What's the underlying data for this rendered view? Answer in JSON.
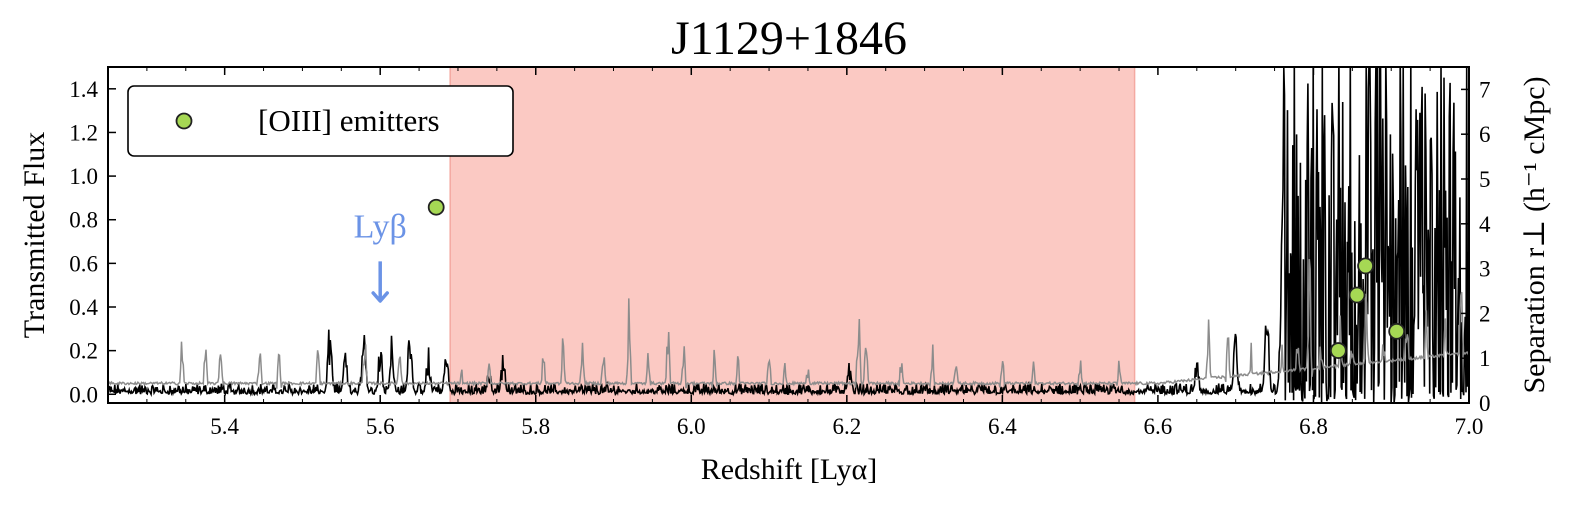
{
  "chart_data": {
    "type": "line",
    "title": "J1129+1846",
    "xlabel": "Redshift [Lyα]",
    "ylabel": "Transmitted Flux",
    "y2label": "Separation r⊥ (h⁻¹ cMpc)",
    "xlim": [
      5.25,
      7.0
    ],
    "ylim": [
      -0.04,
      1.5
    ],
    "y2lim": [
      0,
      7.5
    ],
    "xticks": [
      "5.4",
      "5.6",
      "5.8",
      "6.0",
      "6.2",
      "6.4",
      "6.6",
      "6.8",
      "7.0"
    ],
    "xtick_values": [
      5.4,
      5.6,
      5.8,
      6.0,
      6.2,
      6.4,
      6.6,
      6.8,
      7.0
    ],
    "yticks": [
      "0.0",
      "0.2",
      "0.4",
      "0.6",
      "0.8",
      "1.0",
      "1.2",
      "1.4"
    ],
    "ytick_values": [
      0.0,
      0.2,
      0.4,
      0.6,
      0.8,
      1.0,
      1.2,
      1.4
    ],
    "y2ticks": [
      "0",
      "1",
      "2",
      "3",
      "4",
      "5",
      "6",
      "7"
    ],
    "y2tick_values": [
      0,
      1,
      2,
      3,
      4,
      5,
      6,
      7
    ],
    "shaded_region": {
      "x": [
        5.69,
        6.57
      ],
      "color": "#fbc9c3"
    },
    "annotation": {
      "text": "Lyβ",
      "x": 5.6,
      "y": 0.6,
      "arrow_to_y": 0.4,
      "color": "#6b93e6"
    },
    "legend": {
      "label": "[OIII] emitters",
      "position": "upper-left"
    },
    "series": [
      {
        "name": "[OIII] emitters",
        "kind": "scatter",
        "axis": "right",
        "color": "#a6d854",
        "points": [
          {
            "x": 5.672,
            "y": 4.37
          },
          {
            "x": 6.832,
            "y": 1.17
          },
          {
            "x": 6.856,
            "y": 2.41
          },
          {
            "x": 6.867,
            "y": 3.06
          },
          {
            "x": 6.907,
            "y": 1.6
          }
        ]
      }
    ],
    "spectrum_black": {
      "color": "#000000",
      "baseline_low": 0.0,
      "baseline_high": 0.05,
      "peaks": [
        {
          "x": 5.535,
          "y": 0.33
        },
        {
          "x": 5.555,
          "y": 0.22
        },
        {
          "x": 5.579,
          "y": 0.39
        },
        {
          "x": 5.6,
          "y": 0.26
        },
        {
          "x": 5.615,
          "y": 0.3
        },
        {
          "x": 5.638,
          "y": 0.34
        },
        {
          "x": 5.662,
          "y": 0.22
        },
        {
          "x": 5.685,
          "y": 0.22
        },
        {
          "x": 5.74,
          "y": 0.12
        },
        {
          "x": 5.758,
          "y": 0.19
        },
        {
          "x": 6.203,
          "y": 0.15
        },
        {
          "x": 6.65,
          "y": 0.18
        },
        {
          "x": 6.7,
          "y": 0.3
        },
        {
          "x": 6.74,
          "y": 0.45
        },
        {
          "x": 6.76,
          "y": 0.8
        },
        {
          "x": 6.775,
          "y": 1.1
        },
        {
          "x": 6.79,
          "y": 1.4
        },
        {
          "x": 6.805,
          "y": 1.5
        },
        {
          "x": 6.82,
          "y": 1.5
        },
        {
          "x": 6.84,
          "y": 1.4
        },
        {
          "x": 6.86,
          "y": 1.5
        },
        {
          "x": 6.88,
          "y": 1.5
        },
        {
          "x": 6.9,
          "y": 1.5
        },
        {
          "x": 6.93,
          "y": 1.5
        },
        {
          "x": 6.95,
          "y": 1.5
        }
      ]
    },
    "spectrum_gray": {
      "color": "#8c8c8c",
      "baseline": 0.05,
      "peaks": [
        {
          "x": 5.345,
          "y": 0.26
        },
        {
          "x": 5.375,
          "y": 0.26
        },
        {
          "x": 5.395,
          "y": 0.3
        },
        {
          "x": 5.445,
          "y": 0.25
        },
        {
          "x": 5.47,
          "y": 0.21
        },
        {
          "x": 5.52,
          "y": 0.23
        },
        {
          "x": 5.58,
          "y": 0.31
        },
        {
          "x": 5.625,
          "y": 0.28
        },
        {
          "x": 5.705,
          "y": 0.12
        },
        {
          "x": 5.74,
          "y": 0.18
        },
        {
          "x": 5.81,
          "y": 0.24
        },
        {
          "x": 5.835,
          "y": 0.31
        },
        {
          "x": 5.86,
          "y": 0.28
        },
        {
          "x": 5.887,
          "y": 0.24
        },
        {
          "x": 5.92,
          "y": 0.45
        },
        {
          "x": 5.945,
          "y": 0.24
        },
        {
          "x": 5.97,
          "y": 0.36
        },
        {
          "x": 5.99,
          "y": 0.26
        },
        {
          "x": 6.03,
          "y": 0.23
        },
        {
          "x": 6.06,
          "y": 0.21
        },
        {
          "x": 6.1,
          "y": 0.19
        },
        {
          "x": 6.12,
          "y": 0.18
        },
        {
          "x": 6.15,
          "y": 0.15
        },
        {
          "x": 6.215,
          "y": 0.42
        },
        {
          "x": 6.225,
          "y": 0.35
        },
        {
          "x": 6.27,
          "y": 0.18
        },
        {
          "x": 6.31,
          "y": 0.24
        },
        {
          "x": 6.34,
          "y": 0.21
        },
        {
          "x": 6.4,
          "y": 0.23
        },
        {
          "x": 6.44,
          "y": 0.17
        },
        {
          "x": 6.5,
          "y": 0.19
        },
        {
          "x": 6.55,
          "y": 0.16
        },
        {
          "x": 6.665,
          "y": 0.42
        },
        {
          "x": 6.69,
          "y": 0.3
        },
        {
          "x": 6.72,
          "y": 0.24
        },
        {
          "x": 6.76,
          "y": 0.25
        },
        {
          "x": 6.78,
          "y": 0.38
        },
        {
          "x": 6.795,
          "y": 0.65
        },
        {
          "x": 6.81,
          "y": 0.3
        },
        {
          "x": 6.835,
          "y": 0.48
        },
        {
          "x": 6.85,
          "y": 0.35
        },
        {
          "x": 6.868,
          "y": 0.58
        },
        {
          "x": 6.89,
          "y": 0.32
        },
        {
          "x": 6.92,
          "y": 0.45
        },
        {
          "x": 6.945,
          "y": 0.4
        },
        {
          "x": 6.97,
          "y": 0.42
        },
        {
          "x": 6.99,
          "y": 0.65
        }
      ]
    }
  }
}
